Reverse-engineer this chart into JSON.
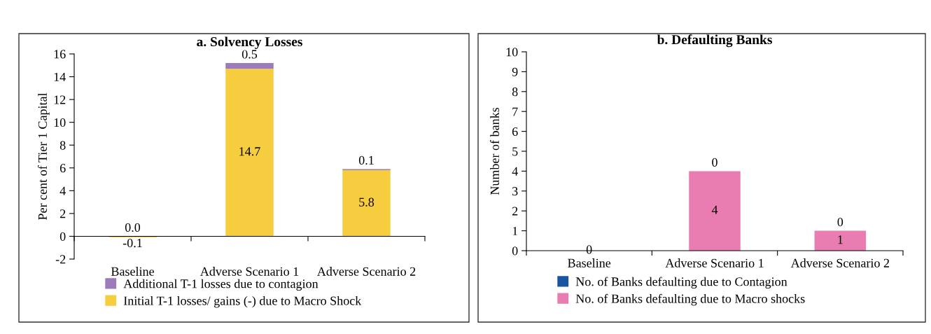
{
  "chart_data": [
    {
      "type": "bar",
      "title": "a. Solvency Losses",
      "ylabel": "Per cent of Tier 1 Capital",
      "categories": [
        "Baseline",
        "Adverse Scenario 1",
        "Adverse Scenario 2"
      ],
      "stacked": true,
      "ylim": [
        -2,
        16
      ],
      "yticks": [
        -2,
        0,
        2,
        4,
        6,
        8,
        10,
        12,
        14,
        16
      ],
      "grid": false,
      "legend": "bottom",
      "series": [
        {
          "name": "Initial T-1 losses/ gains (-) due to Macro Shock",
          "color": "#f6cd3f",
          "values": [
            -0.1,
            14.7,
            5.8
          ],
          "value_labels": [
            "-0.1",
            "14.7",
            "5.8"
          ]
        },
        {
          "name": "Additional T-1 losses due to contagion",
          "color": "#9b7bb9",
          "values": [
            0.0,
            0.5,
            0.1
          ],
          "value_labels": [
            "0.0",
            "0.5",
            "0.1"
          ]
        }
      ]
    },
    {
      "type": "bar",
      "title": "b. Defaulting Banks",
      "ylabel": "Number of banks",
      "categories": [
        "Baseline",
        "Adverse Scenario 1",
        "Adverse Scenario 2"
      ],
      "stacked": true,
      "ylim": [
        0,
        10
      ],
      "yticks": [
        0,
        1,
        2,
        3,
        4,
        5,
        6,
        7,
        8,
        9,
        10
      ],
      "grid": false,
      "legend": "bottom",
      "series": [
        {
          "name": "No. of Banks defaulting due to Macro shocks",
          "color": "#e97cb1",
          "values": [
            0,
            4,
            1
          ],
          "value_labels": [
            "0",
            "4",
            "1"
          ]
        },
        {
          "name": "No. of Banks defaulting due to Contagion",
          "color": "#1a53a0",
          "values": [
            0,
            0,
            0
          ],
          "value_labels": [
            null,
            "0",
            "0"
          ]
        }
      ]
    }
  ]
}
